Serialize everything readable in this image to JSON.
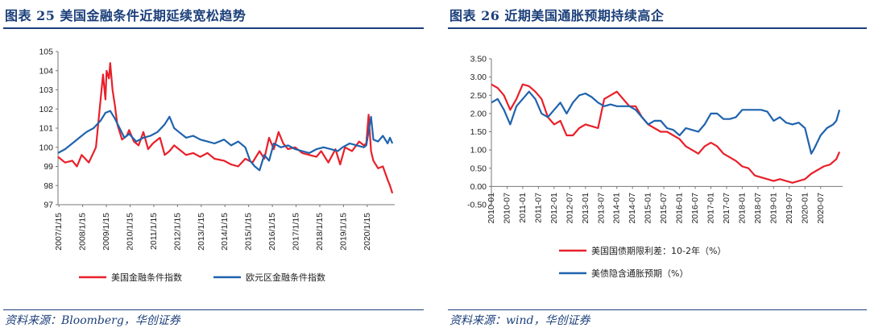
{
  "left": {
    "title": "图表 25   美国金融条件近期延续宽松趋势",
    "source": "资料来源：Bloomberg，华创证券"
  },
  "right": {
    "title": "图表 26   近期美国通胀预期持续高企",
    "source": "资料来源：wind，华创证券"
  },
  "chart_data": [
    {
      "type": "line",
      "ylim": [
        97,
        105
      ],
      "y_ticks": [
        "97",
        "98",
        "99",
        "100",
        "101",
        "102",
        "103",
        "104",
        "105"
      ],
      "x_ticks": [
        "2007/1/15",
        "2008/1/15",
        "2009/1/15",
        "2010/1/15",
        "2011/1/15",
        "2012/1/15",
        "2013/1/15",
        "2014/1/15",
        "2015/1/15",
        "2016/1/15",
        "2017/1/15",
        "2018/1/15",
        "2019/1/15",
        "2020/1/15"
      ],
      "x_range": [
        2007.0,
        2021.2
      ],
      "legend_position": "bottom",
      "series": [
        {
          "name": "美国金融条件指数",
          "color": "#e8202a",
          "x": [
            2007.0,
            2007.3,
            2007.6,
            2007.8,
            2008.0,
            2008.3,
            2008.6,
            2008.9,
            2009.0,
            2009.05,
            2009.15,
            2009.2,
            2009.3,
            2009.4,
            2009.5,
            2009.7,
            2009.9,
            2010.0,
            2010.2,
            2010.4,
            2010.6,
            2010.8,
            2011.0,
            2011.3,
            2011.5,
            2011.7,
            2011.9,
            2012.1,
            2012.4,
            2012.7,
            2013.0,
            2013.3,
            2013.6,
            2014.0,
            2014.3,
            2014.6,
            2014.9,
            2015.2,
            2015.5,
            2015.7,
            2015.9,
            2016.1,
            2016.3,
            2016.5,
            2016.7,
            2017.0,
            2017.3,
            2017.6,
            2017.9,
            2018.1,
            2018.4,
            2018.7,
            2018.9,
            2019.1,
            2019.4,
            2019.7,
            2019.9,
            2020.0,
            2020.1,
            2020.2,
            2020.3,
            2020.5,
            2020.7,
            2020.9,
            2021.0,
            2021.1
          ],
          "values": [
            99.5,
            99.2,
            99.3,
            99.0,
            99.6,
            99.2,
            100.0,
            103.8,
            102.5,
            104.0,
            103.6,
            104.4,
            103.0,
            102.2,
            101.2,
            100.4,
            100.6,
            100.9,
            100.3,
            100.1,
            100.8,
            99.9,
            100.2,
            100.5,
            99.6,
            99.8,
            100.1,
            99.9,
            99.6,
            99.7,
            99.5,
            99.7,
            99.4,
            99.3,
            99.1,
            99.0,
            99.4,
            99.2,
            99.8,
            99.4,
            100.5,
            99.9,
            100.8,
            100.2,
            99.9,
            100.0,
            99.7,
            99.6,
            99.5,
            99.8,
            99.2,
            99.9,
            99.1,
            100.0,
            99.8,
            100.3,
            100.1,
            100.2,
            101.7,
            99.8,
            99.3,
            98.9,
            99.0,
            98.3,
            98.0,
            97.6
          ]
        },
        {
          "name": "欧元区金融条件指数",
          "color": "#1f63ad",
          "x": [
            2007.0,
            2007.3,
            2007.6,
            2007.9,
            2008.2,
            2008.5,
            2008.8,
            2009.0,
            2009.2,
            2009.4,
            2009.6,
            2009.8,
            2010.0,
            2010.3,
            2010.6,
            2010.9,
            2011.2,
            2011.5,
            2011.7,
            2011.9,
            2012.1,
            2012.4,
            2012.7,
            2013.0,
            2013.3,
            2013.6,
            2014.0,
            2014.3,
            2014.6,
            2014.9,
            2015.1,
            2015.3,
            2015.5,
            2015.7,
            2015.9,
            2016.1,
            2016.4,
            2016.7,
            2017.0,
            2017.3,
            2017.6,
            2017.9,
            2018.2,
            2018.5,
            2018.8,
            2019.0,
            2019.3,
            2019.6,
            2019.9,
            2020.0,
            2020.2,
            2020.3,
            2020.5,
            2020.7,
            2020.9,
            2021.0,
            2021.1
          ],
          "values": [
            99.7,
            99.9,
            100.2,
            100.5,
            100.8,
            101.0,
            101.4,
            101.8,
            101.9,
            101.5,
            101.0,
            100.5,
            100.7,
            100.3,
            100.5,
            100.6,
            100.8,
            101.2,
            101.6,
            101.0,
            100.8,
            100.5,
            100.6,
            100.4,
            100.3,
            100.2,
            100.4,
            100.1,
            100.3,
            100.0,
            99.3,
            99.0,
            98.8,
            99.6,
            99.3,
            100.2,
            100.0,
            100.1,
            99.9,
            99.8,
            99.7,
            99.9,
            100.0,
            99.9,
            99.8,
            100.0,
            100.2,
            100.1,
            100.0,
            100.1,
            101.6,
            100.4,
            100.3,
            100.6,
            100.2,
            100.5,
            100.2
          ]
        }
      ]
    },
    {
      "type": "line",
      "ylim": [
        -0.5,
        3.5
      ],
      "y_ticks": [
        "-0.50",
        "0.00",
        "0.50",
        "1.00",
        "1.50",
        "2.00",
        "2.50",
        "3.00",
        "3.50"
      ],
      "x_ticks": [
        "2010-01",
        "2010-07",
        "2011-01",
        "2011-07",
        "2012-01",
        "2012-07",
        "2013-01",
        "2013-07",
        "2014-01",
        "2014-07",
        "2015-01",
        "2015-07",
        "2016-01",
        "2016-07",
        "2017-01",
        "2017-07",
        "2018-01",
        "2018-07",
        "2019-01",
        "2019-07",
        "2020-01",
        "2020-07"
      ],
      "x_range": [
        2010.0,
        2021.2
      ],
      "legend_position": "bottom",
      "series": [
        {
          "name": "美国国债期限利差：10-2年（%）",
          "color": "#e8202a",
          "x": [
            2010.0,
            2010.2,
            2010.4,
            2010.6,
            2010.8,
            2011.0,
            2011.2,
            2011.4,
            2011.6,
            2011.8,
            2012.0,
            2012.2,
            2012.4,
            2012.6,
            2012.8,
            2013.0,
            2013.2,
            2013.4,
            2013.6,
            2013.8,
            2014.0,
            2014.2,
            2014.4,
            2014.6,
            2014.8,
            2015.0,
            2015.2,
            2015.4,
            2015.6,
            2015.8,
            2016.0,
            2016.2,
            2016.4,
            2016.6,
            2016.8,
            2017.0,
            2017.2,
            2017.4,
            2017.6,
            2017.8,
            2018.0,
            2018.2,
            2018.4,
            2018.6,
            2018.8,
            2019.0,
            2019.2,
            2019.4,
            2019.6,
            2019.8,
            2020.0,
            2020.2,
            2020.4,
            2020.6,
            2020.8,
            2021.0,
            2021.1
          ],
          "values": [
            2.8,
            2.7,
            2.5,
            2.1,
            2.4,
            2.8,
            2.75,
            2.6,
            2.4,
            1.9,
            1.7,
            1.8,
            1.4,
            1.4,
            1.6,
            1.7,
            1.65,
            1.6,
            2.4,
            2.5,
            2.6,
            2.4,
            2.2,
            2.2,
            1.9,
            1.7,
            1.6,
            1.5,
            1.5,
            1.4,
            1.3,
            1.1,
            1.0,
            0.9,
            1.1,
            1.2,
            1.1,
            0.9,
            0.8,
            0.7,
            0.55,
            0.5,
            0.3,
            0.25,
            0.2,
            0.15,
            0.2,
            0.15,
            0.1,
            0.15,
            0.2,
            0.35,
            0.45,
            0.55,
            0.6,
            0.75,
            0.95
          ]
        },
        {
          "name": "美债隐含通胀预期（%）",
          "color": "#1f63ad",
          "x": [
            2010.0,
            2010.2,
            2010.4,
            2010.6,
            2010.8,
            2011.0,
            2011.2,
            2011.4,
            2011.6,
            2011.8,
            2012.0,
            2012.2,
            2012.4,
            2012.6,
            2012.8,
            2013.0,
            2013.2,
            2013.4,
            2013.6,
            2013.8,
            2014.0,
            2014.2,
            2014.4,
            2014.6,
            2014.8,
            2015.0,
            2015.2,
            2015.4,
            2015.6,
            2015.8,
            2016.0,
            2016.2,
            2016.4,
            2016.6,
            2016.8,
            2017.0,
            2017.2,
            2017.4,
            2017.6,
            2017.8,
            2018.0,
            2018.2,
            2018.4,
            2018.6,
            2018.8,
            2019.0,
            2019.2,
            2019.4,
            2019.6,
            2019.8,
            2020.0,
            2020.2,
            2020.3,
            2020.5,
            2020.7,
            2020.9,
            2021.0,
            2021.1
          ],
          "values": [
            2.3,
            2.4,
            2.1,
            1.7,
            2.2,
            2.4,
            2.6,
            2.4,
            2.0,
            1.9,
            2.1,
            2.3,
            2.0,
            2.3,
            2.5,
            2.55,
            2.45,
            2.3,
            2.2,
            2.25,
            2.2,
            2.2,
            2.2,
            2.1,
            1.9,
            1.7,
            1.8,
            1.8,
            1.6,
            1.55,
            1.4,
            1.6,
            1.55,
            1.5,
            1.7,
            2.0,
            2.0,
            1.85,
            1.85,
            1.9,
            2.1,
            2.1,
            2.1,
            2.1,
            2.05,
            1.8,
            1.9,
            1.75,
            1.7,
            1.75,
            1.6,
            0.9,
            1.05,
            1.4,
            1.6,
            1.7,
            1.8,
            2.1
          ]
        }
      ]
    }
  ]
}
